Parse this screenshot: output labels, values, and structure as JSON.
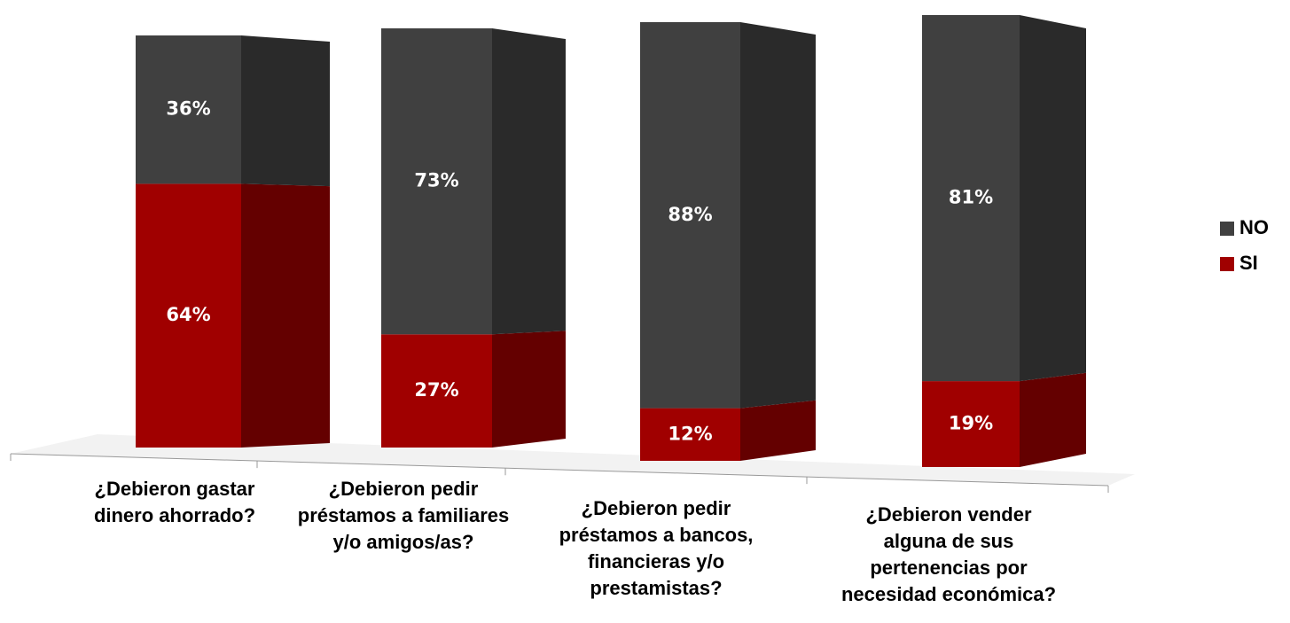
{
  "chart_data": {
    "type": "bar3d-stacked",
    "categories": [
      [
        "¿Debieron gastar",
        "dinero ahorrado?"
      ],
      [
        "¿Debieron pedir",
        "préstamos a familiares",
        "y/o amigos/as?"
      ],
      [
        "¿Debieron pedir",
        "préstamos a bancos,",
        "financieras y/o",
        "prestamistas?"
      ],
      [
        "¿Debieron vender",
        "alguna de sus",
        "pertenencias por",
        "necesidad económica?"
      ]
    ],
    "series": [
      {
        "name": "SI",
        "color": "#a00000",
        "side_color": "#640000",
        "values": [
          64,
          27,
          12,
          19
        ],
        "value_labels": [
          "64%",
          "27%",
          "12%",
          "19%"
        ]
      },
      {
        "name": "NO",
        "color": "#404040",
        "side_color": "#2a2a2a",
        "values": [
          36,
          73,
          88,
          81
        ],
        "value_labels": [
          "36%",
          "73%",
          "88%",
          "81%"
        ]
      }
    ],
    "ylim": [
      0,
      100
    ],
    "legend": "right"
  }
}
